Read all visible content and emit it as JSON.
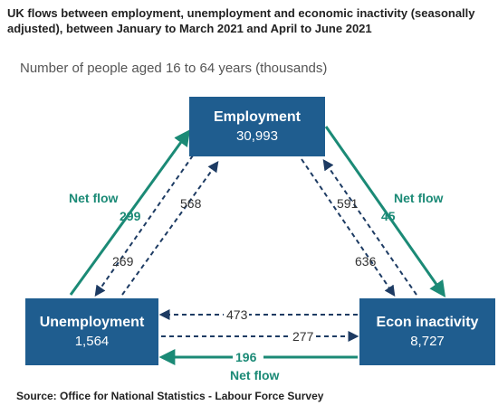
{
  "title": "UK flows between employment, unemployment and economic inactivity (seasonally adjusted), between January to March 2021 and April to June 2021",
  "subtitle": "Number of people aged 16 to 64 years (thousands)",
  "nodes": {
    "employment": {
      "name": "Employment",
      "value": "30,993"
    },
    "unemployment": {
      "name": "Unemployment",
      "value": "1,564"
    },
    "inactivity": {
      "name": "Econ inactivity",
      "value": "8,727"
    }
  },
  "flows": {
    "unemp_to_emp": "568",
    "emp_to_unemp": "269",
    "emp_to_inactive": "591",
    "inactive_to_emp": "636",
    "inactive_to_unemp": "473",
    "unemp_to_inactive": "277"
  },
  "net_flows": {
    "label": "Net flow",
    "unemp_emp": "299",
    "emp_inactive": "45",
    "inactive_unemp": "196"
  },
  "colors": {
    "box": "#1f5d8f",
    "net": "#1b8a76",
    "dashed": "#1d3b63"
  },
  "source": "Source: Office for National Statistics - Labour Force Survey"
}
